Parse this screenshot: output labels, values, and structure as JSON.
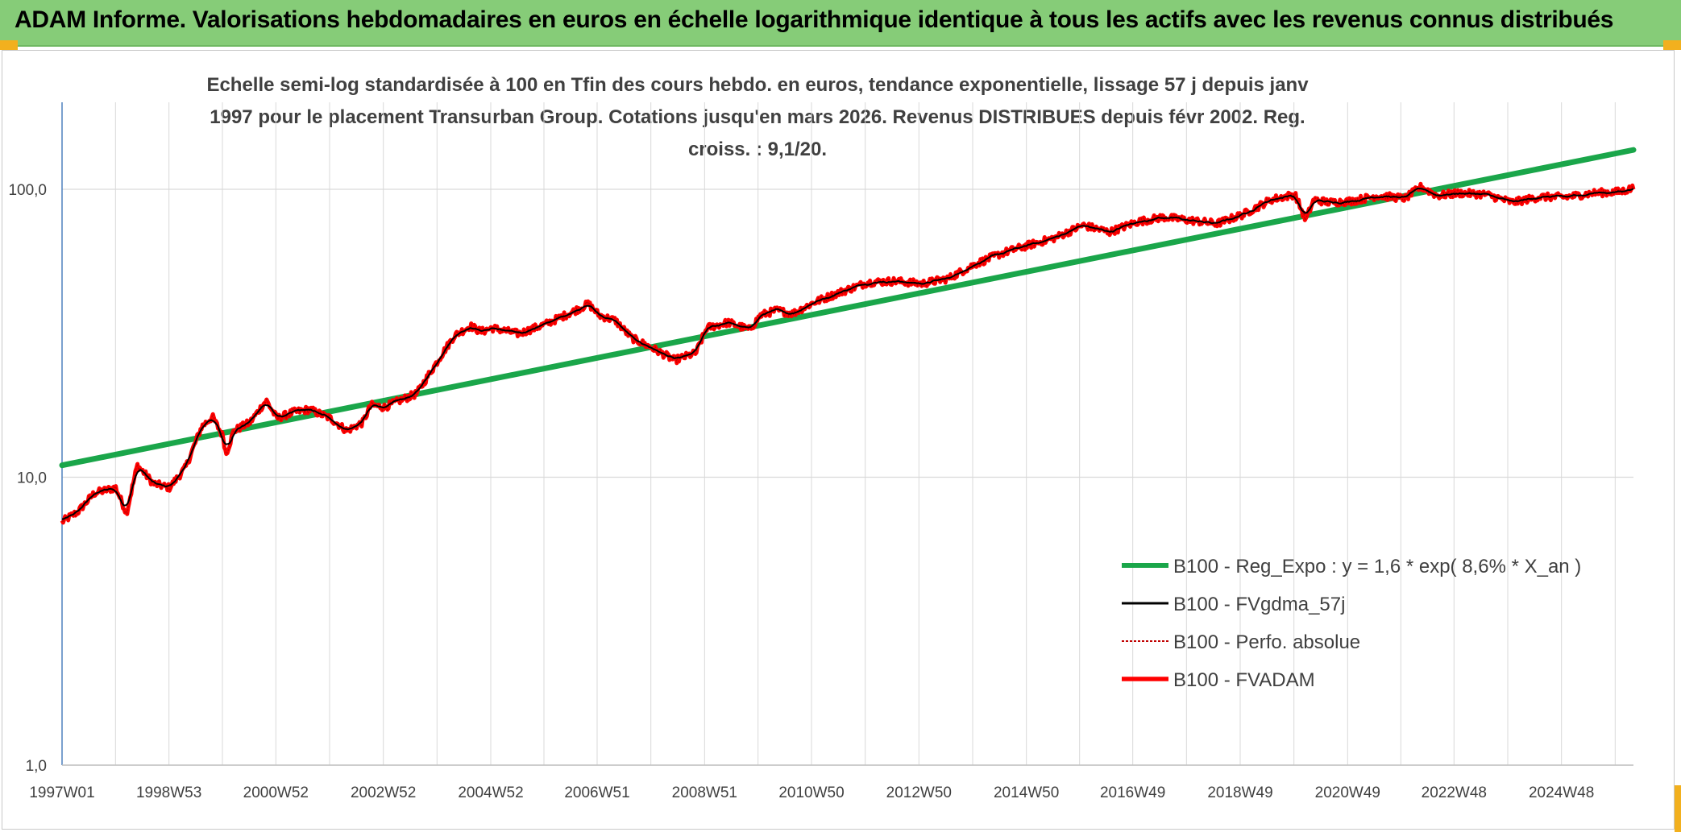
{
  "banner": {
    "title": "ADAM Informe. Valorisations hebdomadaires en euros en échelle logarithmique identique à tous les actifs avec les revenus connus distribués"
  },
  "colors": {
    "banner_bg": "#86cc78",
    "corner_accent": "#f2b01e",
    "trend": "#1aa64a",
    "smooth": "#000000",
    "perfo": "#c00000",
    "fvadam": "#ff0000",
    "grid": "#d9d9d9",
    "axis": "#4f81bd"
  },
  "chart_data": {
    "type": "line",
    "title": "Echelle semi-log standardisée à 100 en Tfin des cours hebdo. en euros, tendance exponentielle, lissage 57 j depuis janv 1997 pour le placement Transurban Group. Cotations jusqu'en mars 2026. Revenus DISTRIBUES depuis févr 2002. Reg. croiss. : 9,1/20.",
    "xlabel": "",
    "ylabel": "",
    "y_scale": "log",
    "ylim": [
      1,
      160
    ],
    "xlim": [
      1997.0,
      2026.25
    ],
    "grid": true,
    "legend_position": "right",
    "y_ticks": [
      {
        "value": 1,
        "label": "1,0"
      },
      {
        "value": 10,
        "label": "10,0"
      },
      {
        "value": 100,
        "label": "100,0"
      }
    ],
    "x_ticks": [
      {
        "year": 1997.0,
        "label": "1997W01"
      },
      {
        "year": 1998.99,
        "label": "1998W53"
      },
      {
        "year": 2000.98,
        "label": "2000W52"
      },
      {
        "year": 2002.98,
        "label": "2002W52"
      },
      {
        "year": 2004.98,
        "label": "2004W52"
      },
      {
        "year": 2006.96,
        "label": "2006W51"
      },
      {
        "year": 2008.96,
        "label": "2008W51"
      },
      {
        "year": 2010.95,
        "label": "2010W50"
      },
      {
        "year": 2012.95,
        "label": "2012W50"
      },
      {
        "year": 2014.95,
        "label": "2014W50"
      },
      {
        "year": 2016.93,
        "label": "2016W49"
      },
      {
        "year": 2018.93,
        "label": "2018W49"
      },
      {
        "year": 2020.93,
        "label": "2020W49"
      },
      {
        "year": 2022.91,
        "label": "2022W48"
      },
      {
        "year": 2024.91,
        "label": "2024W48"
      }
    ],
    "series": [
      {
        "name": "B100 - Reg_Expo : y = 1,6 * exp( 8,6% *  X_an )",
        "style": "trend",
        "x": [
          1997.0,
          2026.25
        ],
        "values": [
          11.0,
          137.0
        ]
      },
      {
        "name": "B100 - FVgdma_57j",
        "style": "smooth"
      },
      {
        "name": "B100 - Perfo. absolue",
        "style": "dotted"
      },
      {
        "name": "B100 - FVADAM",
        "style": "main",
        "x": [
          1997.0,
          1997.3,
          1997.6,
          1998.0,
          1998.2,
          1998.4,
          1998.5,
          1998.7,
          1999.0,
          1999.3,
          1999.6,
          1999.8,
          2000.0,
          2000.05,
          2000.2,
          2000.5,
          2000.8,
          2001.0,
          2001.3,
          2001.6,
          2002.0,
          2002.3,
          2002.6,
          2002.75,
          2003.0,
          2003.3,
          2003.6,
          2004.0,
          2004.3,
          2004.6,
          2004.8,
          2005.0,
          2005.5,
          2006.0,
          2006.5,
          2006.8,
          2007.0,
          2007.3,
          2007.6,
          2008.0,
          2008.4,
          2008.8,
          2009.0,
          2009.4,
          2009.8,
          2010.0,
          2010.3,
          2010.6,
          2011.0,
          2011.5,
          2012.0,
          2012.5,
          2013.0,
          2013.5,
          2014.0,
          2014.5,
          2015.0,
          2015.5,
          2016.0,
          2016.5,
          2017.0,
          2017.5,
          2018.0,
          2018.5,
          2019.0,
          2019.5,
          2019.95,
          2020.15,
          2020.3,
          2020.6,
          2021.0,
          2021.5,
          2022.0,
          2022.3,
          2022.6,
          2023.0,
          2023.5,
          2024.0,
          2024.5,
          2025.0,
          2025.5,
          2026.0,
          2026.25
        ],
        "values": [
          7.0,
          7.6,
          8.8,
          9.2,
          7.5,
          11.0,
          10.5,
          9.5,
          9.2,
          10.8,
          15.0,
          16.2,
          13.8,
          12.0,
          14.5,
          15.5,
          18.5,
          16.0,
          16.8,
          17.2,
          16.0,
          14.5,
          15.5,
          17.8,
          17.5,
          18.5,
          19.5,
          25.5,
          31.0,
          33.5,
          32.0,
          33.0,
          31.5,
          34.0,
          37.5,
          40.0,
          36.5,
          35.0,
          30.5,
          28.0,
          25.5,
          27.0,
          33.0,
          34.5,
          32.5,
          36.5,
          38.0,
          37.0,
          40.5,
          44.0,
          47.5,
          48.0,
          47.0,
          49.0,
          55.0,
          60.0,
          64.0,
          68.0,
          75.0,
          71.0,
          77.0,
          80.0,
          78.0,
          76.0,
          82.0,
          92.0,
          96.0,
          78.0,
          92.0,
          90.0,
          91.0,
          95.0,
          93.0,
          102.0,
          95.0,
          97.0,
          96.0,
          90.0,
          94.0,
          94.0,
          97.0,
          98.0,
          101.0
        ]
      }
    ]
  }
}
